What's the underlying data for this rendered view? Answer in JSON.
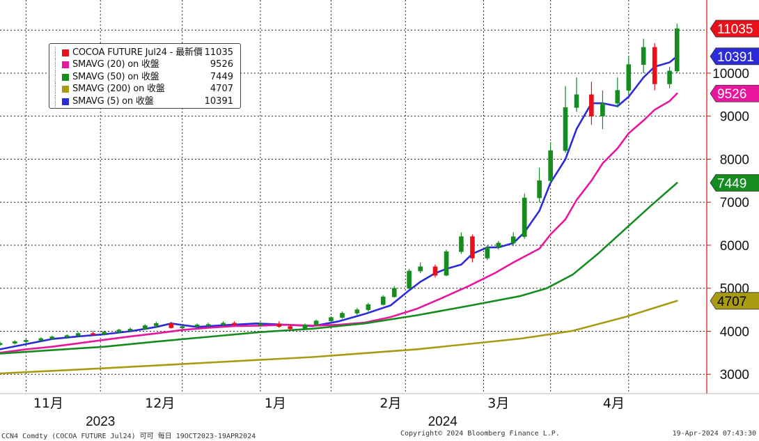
{
  "legend": [
    {
      "label": "COCOA FUTURE Jul24 - 最新價",
      "value": "11035",
      "color": "#e8101a"
    },
    {
      "label": "SMAVG (20)  on 收盤",
      "value": "9526",
      "color": "#e8169c"
    },
    {
      "label": "SMAVG (50)  on 收盤",
      "value": "7449",
      "color": "#148c1e"
    },
    {
      "label": "SMAVG (200)  on 收盤",
      "value": "4707",
      "color": "#a89a12"
    },
    {
      "label": "SMAVG (5)  on 收盤",
      "value": "10391",
      "color": "#2b2bd8"
    }
  ],
  "price_tags": [
    {
      "text": "11035",
      "value": 11035,
      "bg": "#e8101a",
      "fg": "#ffffff"
    },
    {
      "text": "10391",
      "value": 10391,
      "bg": "#2b2bd8",
      "fg": "#ffffff"
    },
    {
      "text": "9526",
      "value": 9526,
      "bg": "#e8169c",
      "fg": "#ffffff"
    },
    {
      "text": "7449",
      "value": 7449,
      "bg": "#148c1e",
      "fg": "#ffffff"
    },
    {
      "text": "4707",
      "value": 4707,
      "bg": "#a89a12",
      "fg": "#000000"
    }
  ],
  "footer": {
    "left": "CCN4 Comdty (COCOA FUTURE     Jul24) 可可  每日 19OCT2023-19APR2024",
    "center": "Copyright© 2024 Bloomberg Finance L.P.",
    "right": "19-Apr-2024 07:43:30"
  },
  "chart_data": {
    "type": "candlestick",
    "y_ticks": [
      "3000",
      "4000",
      "5000",
      "6000",
      "7000",
      "8000",
      "9000",
      "10000"
    ],
    "ylim": [
      2550,
      11700
    ],
    "grid": true,
    "x_labels": [
      {
        "text": "11月",
        "date": "2023-11-01"
      },
      {
        "text": "12月",
        "date": "2023-12-01"
      },
      {
        "text": "1月",
        "date": "2024-01-01"
      },
      {
        "text": "2月",
        "date": "2024-02-01"
      },
      {
        "text": "3月",
        "date": "2024-03-01"
      },
      {
        "text": "4月",
        "date": "2024-04-01"
      }
    ],
    "year_labels": [
      {
        "text": "2023",
        "date": "2023-11-15"
      },
      {
        "text": "2024",
        "date": "2024-02-15"
      }
    ],
    "xlim": [
      "2023-10-19",
      "2024-04-26"
    ],
    "candle_up_color": "#148c1e",
    "candle_down_color": "#e8101a",
    "candles": [
      {
        "d": "2023-10-19",
        "o": 3700,
        "h": 3760,
        "l": 3660,
        "c": 3720
      },
      {
        "d": "2023-10-23",
        "o": 3720,
        "h": 3790,
        "l": 3690,
        "c": 3760
      },
      {
        "d": "2023-10-26",
        "o": 3760,
        "h": 3820,
        "l": 3720,
        "c": 3790
      },
      {
        "d": "2023-10-30",
        "o": 3790,
        "h": 3860,
        "l": 3760,
        "c": 3830
      },
      {
        "d": "2023-11-02",
        "o": 3830,
        "h": 3900,
        "l": 3800,
        "c": 3870
      },
      {
        "d": "2023-11-06",
        "o": 3870,
        "h": 3930,
        "l": 3830,
        "c": 3900
      },
      {
        "d": "2023-11-09",
        "o": 3900,
        "h": 3980,
        "l": 3870,
        "c": 3950
      },
      {
        "d": "2023-11-13",
        "o": 3950,
        "h": 4010,
        "l": 3900,
        "c": 3930
      },
      {
        "d": "2023-11-16",
        "o": 3930,
        "h": 4010,
        "l": 3900,
        "c": 3980
      },
      {
        "d": "2023-11-20",
        "o": 3980,
        "h": 4060,
        "l": 3950,
        "c": 4030
      },
      {
        "d": "2023-11-23",
        "o": 4030,
        "h": 4090,
        "l": 3990,
        "c": 4050
      },
      {
        "d": "2023-11-27",
        "o": 4050,
        "h": 4160,
        "l": 4030,
        "c": 4130
      },
      {
        "d": "2023-11-30",
        "o": 4130,
        "h": 4220,
        "l": 4080,
        "c": 4180
      },
      {
        "d": "2023-12-04",
        "o": 4180,
        "h": 4220,
        "l": 4060,
        "c": 4080
      },
      {
        "d": "2023-12-07",
        "o": 4080,
        "h": 4150,
        "l": 4050,
        "c": 4110
      },
      {
        "d": "2023-12-11",
        "o": 4110,
        "h": 4180,
        "l": 4080,
        "c": 4150
      },
      {
        "d": "2023-12-14",
        "o": 4150,
        "h": 4200,
        "l": 4110,
        "c": 4160
      },
      {
        "d": "2023-12-18",
        "o": 4160,
        "h": 4230,
        "l": 4120,
        "c": 4190
      },
      {
        "d": "2023-12-21",
        "o": 4190,
        "h": 4230,
        "l": 4130,
        "c": 4150
      },
      {
        "d": "2023-12-28",
        "o": 4150,
        "h": 4210,
        "l": 4110,
        "c": 4170
      },
      {
        "d": "2024-01-02",
        "o": 4170,
        "h": 4230,
        "l": 4080,
        "c": 4110
      },
      {
        "d": "2024-01-05",
        "o": 4110,
        "h": 4150,
        "l": 4020,
        "c": 4060
      },
      {
        "d": "2024-01-09",
        "o": 4060,
        "h": 4180,
        "l": 4040,
        "c": 4150
      },
      {
        "d": "2024-01-12",
        "o": 4150,
        "h": 4270,
        "l": 4120,
        "c": 4240
      },
      {
        "d": "2024-01-16",
        "o": 4240,
        "h": 4350,
        "l": 4200,
        "c": 4320
      },
      {
        "d": "2024-01-19",
        "o": 4320,
        "h": 4460,
        "l": 4290,
        "c": 4420
      },
      {
        "d": "2024-01-23",
        "o": 4420,
        "h": 4540,
        "l": 4380,
        "c": 4500
      },
      {
        "d": "2024-01-26",
        "o": 4500,
        "h": 4660,
        "l": 4460,
        "c": 4620
      },
      {
        "d": "2024-01-30",
        "o": 4620,
        "h": 4840,
        "l": 4600,
        "c": 4800
      },
      {
        "d": "2024-02-02",
        "o": 4800,
        "h": 5050,
        "l": 4780,
        "c": 5000
      },
      {
        "d": "2024-02-06",
        "o": 5000,
        "h": 5450,
        "l": 4980,
        "c": 5400
      },
      {
        "d": "2024-02-09",
        "o": 5400,
        "h": 5600,
        "l": 5350,
        "c": 5500
      },
      {
        "d": "2024-02-13",
        "o": 5500,
        "h": 5550,
        "l": 5250,
        "c": 5300
      },
      {
        "d": "2024-02-16",
        "o": 5300,
        "h": 5900,
        "l": 5280,
        "c": 5850
      },
      {
        "d": "2024-02-20",
        "o": 5850,
        "h": 6300,
        "l": 5800,
        "c": 6200
      },
      {
        "d": "2024-02-23",
        "o": 6200,
        "h": 6250,
        "l": 5600,
        "c": 5700
      },
      {
        "d": "2024-02-27",
        "o": 5700,
        "h": 6000,
        "l": 5650,
        "c": 5950
      },
      {
        "d": "2024-03-01",
        "o": 5950,
        "h": 6100,
        "l": 5900,
        "c": 6050
      },
      {
        "d": "2024-03-05",
        "o": 6050,
        "h": 6300,
        "l": 5980,
        "c": 6200
      },
      {
        "d": "2024-03-08",
        "o": 6200,
        "h": 7200,
        "l": 6150,
        "c": 7100
      },
      {
        "d": "2024-03-12",
        "o": 7100,
        "h": 7800,
        "l": 7000,
        "c": 7500
      },
      {
        "d": "2024-03-15",
        "o": 7500,
        "h": 8400,
        "l": 7450,
        "c": 8200
      },
      {
        "d": "2024-03-19",
        "o": 8200,
        "h": 9700,
        "l": 8150,
        "c": 9200
      },
      {
        "d": "2024-03-22",
        "o": 9200,
        "h": 9900,
        "l": 9100,
        "c": 9500
      },
      {
        "d": "2024-03-26",
        "o": 9500,
        "h": 9800,
        "l": 8800,
        "c": 9000
      },
      {
        "d": "2024-03-29",
        "o": 9000,
        "h": 9600,
        "l": 8700,
        "c": 9300
      },
      {
        "d": "2024-04-02",
        "o": 9300,
        "h": 9900,
        "l": 9200,
        "c": 9600
      },
      {
        "d": "2024-04-05",
        "o": 9600,
        "h": 10400,
        "l": 9500,
        "c": 10200
      },
      {
        "d": "2024-04-09",
        "o": 10200,
        "h": 10800,
        "l": 10000,
        "c": 10600
      },
      {
        "d": "2024-04-12",
        "o": 10600,
        "h": 10700,
        "l": 9600,
        "c": 9750
      },
      {
        "d": "2024-04-16",
        "o": 9750,
        "h": 10150,
        "l": 9650,
        "c": 10050
      },
      {
        "d": "2024-04-18",
        "o": 10050,
        "h": 11150,
        "l": 10000,
        "c": 11035
      }
    ],
    "series": [
      {
        "name": "SMAVG (5)  on 收盤",
        "color": "#2b2bd8",
        "width": 2.6,
        "points": [
          [
            "2023-10-19",
            3580
          ],
          [
            "2023-10-26",
            3700
          ],
          [
            "2023-11-02",
            3820
          ],
          [
            "2023-11-09",
            3880
          ],
          [
            "2023-11-16",
            3930
          ],
          [
            "2023-11-23",
            4000
          ],
          [
            "2023-11-30",
            4100
          ],
          [
            "2023-12-04",
            4180
          ],
          [
            "2023-12-11",
            4100
          ],
          [
            "2023-12-18",
            4140
          ],
          [
            "2023-12-27",
            4180
          ],
          [
            "2024-01-04",
            4150
          ],
          [
            "2024-01-11",
            4120
          ],
          [
            "2024-01-18",
            4230
          ],
          [
            "2024-01-25",
            4400
          ],
          [
            "2024-02-01",
            4600
          ],
          [
            "2024-02-06",
            4950
          ],
          [
            "2024-02-09",
            5150
          ],
          [
            "2024-02-13",
            5350
          ],
          [
            "2024-02-16",
            5450
          ],
          [
            "2024-02-20",
            5550
          ],
          [
            "2024-02-23",
            5800
          ],
          [
            "2024-02-27",
            5950
          ],
          [
            "2024-03-01",
            5950
          ],
          [
            "2024-03-05",
            6050
          ],
          [
            "2024-03-08",
            6300
          ],
          [
            "2024-03-12",
            6800
          ],
          [
            "2024-03-15",
            7450
          ],
          [
            "2024-03-19",
            8000
          ],
          [
            "2024-03-22",
            8700
          ],
          [
            "2024-03-26",
            9300
          ],
          [
            "2024-03-29",
            9300
          ],
          [
            "2024-04-02",
            9230
          ],
          [
            "2024-04-05",
            9450
          ],
          [
            "2024-04-09",
            9900
          ],
          [
            "2024-04-12",
            10150
          ],
          [
            "2024-04-16",
            10250
          ],
          [
            "2024-04-18",
            10391
          ]
        ]
      },
      {
        "name": "SMAVG (20)  on 收盤",
        "color": "#e8169c",
        "width": 2.6,
        "points": [
          [
            "2023-10-19",
            3500
          ],
          [
            "2023-10-26",
            3580
          ],
          [
            "2023-11-02",
            3640
          ],
          [
            "2023-11-09",
            3720
          ],
          [
            "2023-11-16",
            3800
          ],
          [
            "2023-11-23",
            3880
          ],
          [
            "2023-11-30",
            3950
          ],
          [
            "2023-12-07",
            4030
          ],
          [
            "2023-12-14",
            4080
          ],
          [
            "2023-12-21",
            4120
          ],
          [
            "2023-12-28",
            4130
          ],
          [
            "2024-01-04",
            4150
          ],
          [
            "2024-01-11",
            4130
          ],
          [
            "2024-01-18",
            4150
          ],
          [
            "2024-01-25",
            4200
          ],
          [
            "2024-02-01",
            4330
          ],
          [
            "2024-02-08",
            4520
          ],
          [
            "2024-02-15",
            4780
          ],
          [
            "2024-02-22",
            5050
          ],
          [
            "2024-02-29",
            5350
          ],
          [
            "2024-03-05",
            5600
          ],
          [
            "2024-03-12",
            5920
          ],
          [
            "2024-03-15",
            6250
          ],
          [
            "2024-03-19",
            6600
          ],
          [
            "2024-03-22",
            7050
          ],
          [
            "2024-03-26",
            7500
          ],
          [
            "2024-03-29",
            7900
          ],
          [
            "2024-04-02",
            8250
          ],
          [
            "2024-04-05",
            8600
          ],
          [
            "2024-04-09",
            8900
          ],
          [
            "2024-04-12",
            9150
          ],
          [
            "2024-04-16",
            9350
          ],
          [
            "2024-04-18",
            9526
          ]
        ]
      },
      {
        "name": "SMAVG (50)  on 收盤",
        "color": "#148c1e",
        "width": 2.6,
        "points": [
          [
            "2023-10-19",
            3480
          ],
          [
            "2023-11-02",
            3560
          ],
          [
            "2023-11-16",
            3640
          ],
          [
            "2023-11-30",
            3760
          ],
          [
            "2023-12-14",
            3870
          ],
          [
            "2023-12-28",
            3980
          ],
          [
            "2024-01-11",
            4060
          ],
          [
            "2024-01-25",
            4180
          ],
          [
            "2024-02-08",
            4370
          ],
          [
            "2024-02-22",
            4590
          ],
          [
            "2024-03-07",
            4820
          ],
          [
            "2024-03-14",
            5000
          ],
          [
            "2024-03-21",
            5320
          ],
          [
            "2024-03-28",
            5820
          ],
          [
            "2024-04-04",
            6370
          ],
          [
            "2024-04-11",
            6920
          ],
          [
            "2024-04-18",
            7449
          ]
        ]
      },
      {
        "name": "SMAVG (200)  on 收盤",
        "color": "#a89a12",
        "width": 2.6,
        "points": [
          [
            "2023-10-19",
            3020
          ],
          [
            "2023-11-16",
            3140
          ],
          [
            "2023-12-14",
            3270
          ],
          [
            "2024-01-11",
            3400
          ],
          [
            "2024-02-08",
            3580
          ],
          [
            "2024-03-07",
            3830
          ],
          [
            "2024-03-21",
            4010
          ],
          [
            "2024-04-04",
            4330
          ],
          [
            "2024-04-18",
            4707
          ]
        ]
      }
    ]
  }
}
